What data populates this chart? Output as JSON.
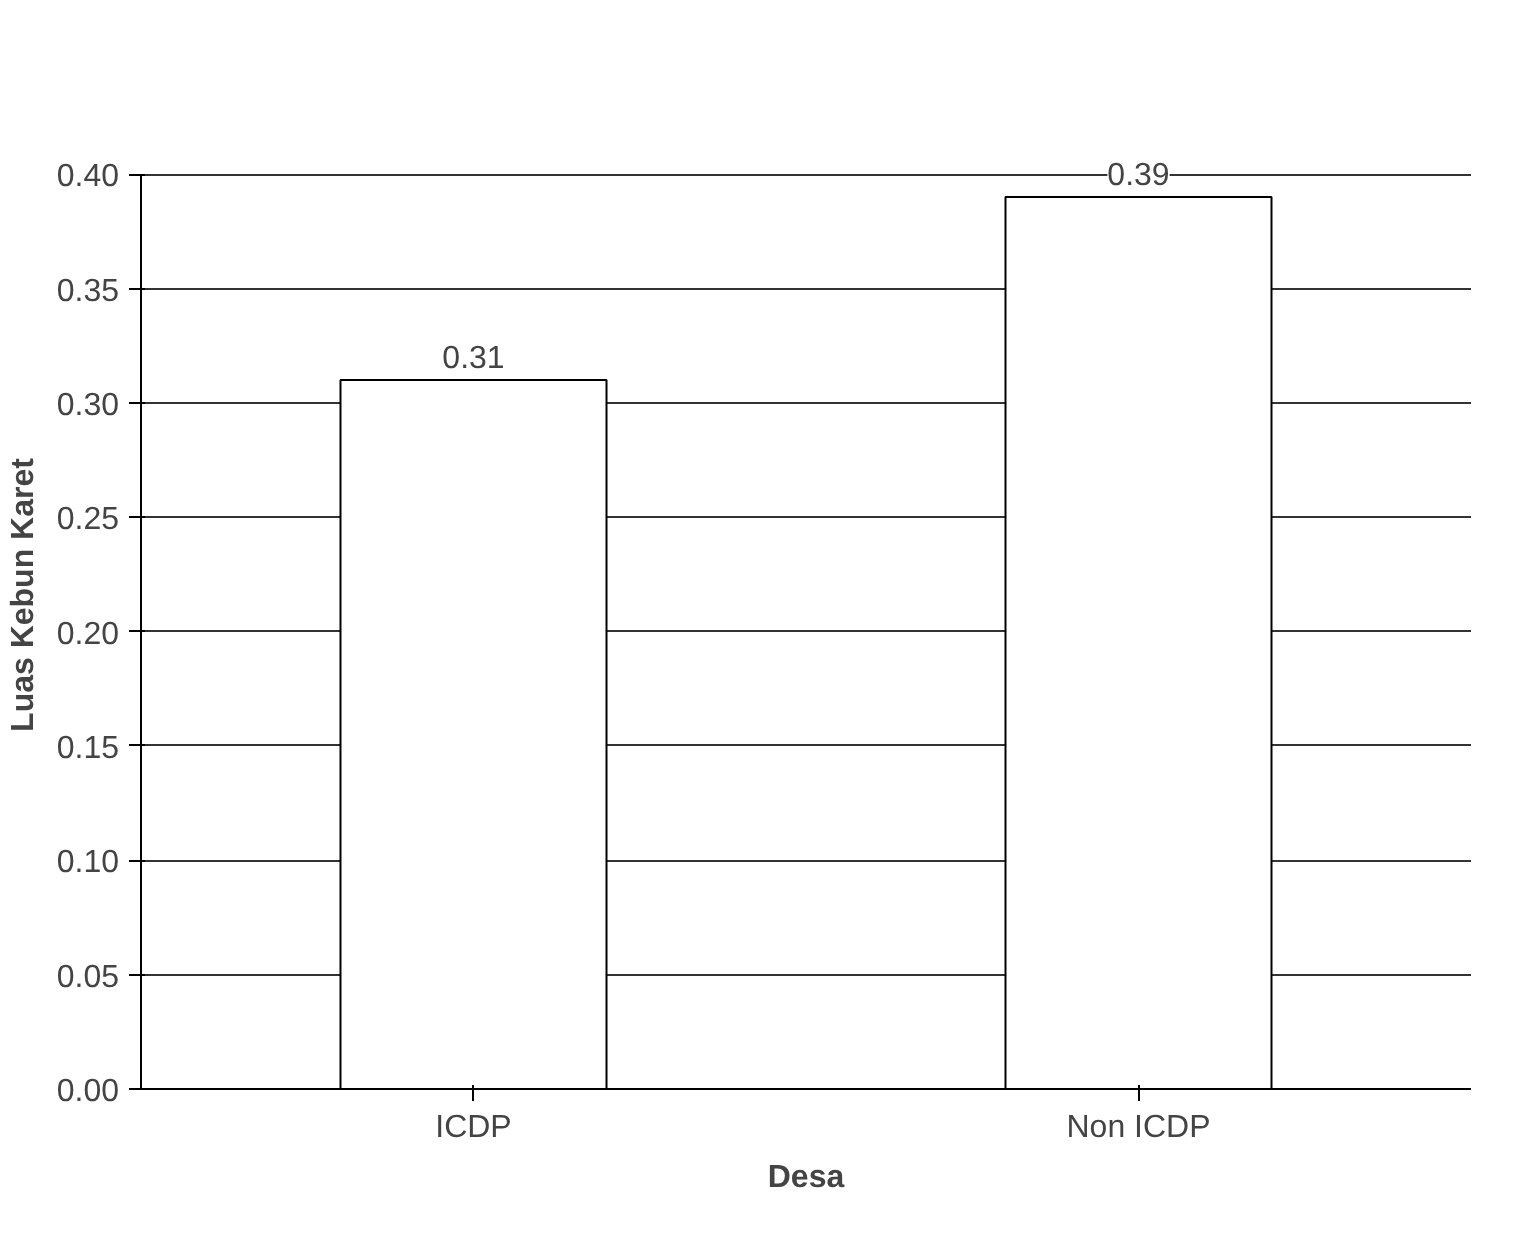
{
  "chart_data": {
    "type": "bar",
    "xlabel": "Desa",
    "ylabel": "Luas Kebun Karet",
    "categories": [
      "ICDP",
      "Non ICDP"
    ],
    "values": [
      0.31,
      0.39
    ],
    "color": "#ffffff",
    "ylim": [
      0,
      0.4
    ],
    "yticks": [
      {
        "value": 0,
        "label": "0.00"
      },
      {
        "value": 0.05,
        "label": "0.05"
      },
      {
        "value": 0.1,
        "label": "0.10"
      },
      {
        "value": 0.15,
        "label": "0.15"
      },
      {
        "value": 0.2,
        "label": "0.20"
      },
      {
        "value": 0.25,
        "label": "0.25"
      },
      {
        "value": 0.3,
        "label": "0.30"
      },
      {
        "value": 0.35,
        "label": "0.35"
      },
      {
        "value": 0.4,
        "label": "0.40"
      }
    ],
    "grid": "y",
    "data_labels": true
  }
}
